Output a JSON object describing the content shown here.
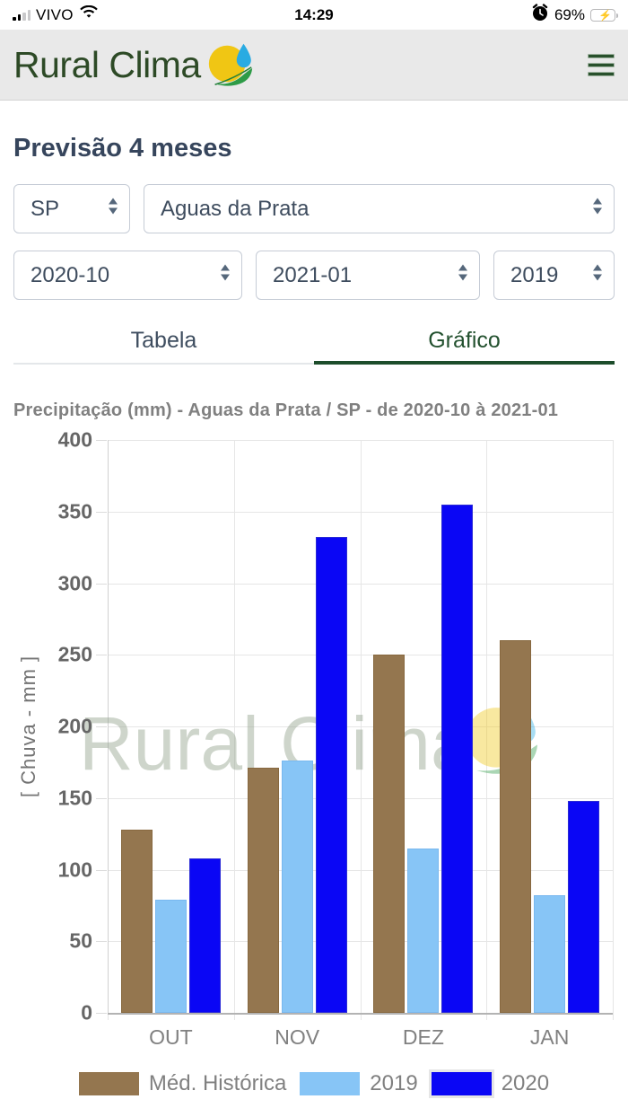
{
  "status_bar": {
    "carrier": "VIVO",
    "time": "14:29",
    "battery_percent": "69%"
  },
  "header": {
    "brand": "Rural Clima"
  },
  "page_title": "Previsão 4 meses",
  "filters": {
    "state": {
      "value": "SP"
    },
    "city": {
      "value": "Aguas da Prata"
    },
    "period_start": {
      "value": "2020-10"
    },
    "period_end": {
      "value": "2021-01"
    },
    "compare_year": {
      "value": "2019"
    }
  },
  "tabs": [
    {
      "label": "Tabela",
      "active": false
    },
    {
      "label": "Gráfico",
      "active": true
    }
  ],
  "chart_data": {
    "type": "bar",
    "title": "Precipitação (mm) - Aguas da Prata / SP - de 2020-10 à 2021-01",
    "ylabel": "[ Chuva - mm ]",
    "xlabel": "",
    "ylim": [
      0,
      400
    ],
    "ytick_step": 50,
    "grid": true,
    "legend_position": "bottom",
    "categories": [
      "OUT",
      "NOV",
      "DEZ",
      "JAN"
    ],
    "series": [
      {
        "name": "Méd. Histórica",
        "color": "#94764f",
        "border_color": "#87683f",
        "values": [
          128,
          171,
          250,
          260
        ],
        "swatch_outlined": false
      },
      {
        "name": "2019",
        "color": "#87c5f6",
        "border_color": "#79b8ef",
        "values": [
          79,
          176,
          115,
          82
        ],
        "swatch_outlined": false
      },
      {
        "name": "2020",
        "color": "#0a06f5",
        "border_color": "#2b2bd5",
        "values": [
          108,
          332,
          355,
          148
        ],
        "swatch_outlined": true
      }
    ],
    "watermark": "Rural Clima"
  },
  "colors": {
    "brand_green": "#2d4a26",
    "tab_active_green": "#1d4d2b",
    "heading_slate": "#36455c",
    "battery_green": "#34c759",
    "header_background": "#e9e9e9"
  }
}
